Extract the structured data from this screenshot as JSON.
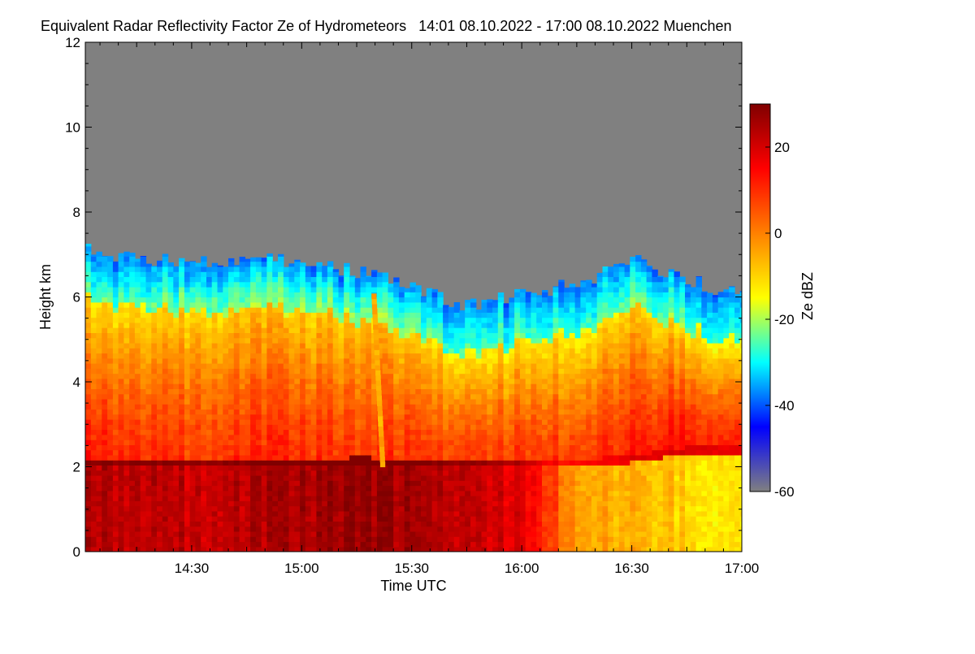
{
  "title": "Equivalent Radar Reflectivity Factor Ze of Hydrometeors   14:01 08.10.2022 - 17:00 08.10.2022 Muenchen",
  "chart_data": {
    "type": "heatmap",
    "title": "Equivalent Radar Reflectivity Factor Ze of Hydrometeors",
    "period": "14:01 08.10.2022 - 17:00 08.10.2022",
    "location": "Muenchen",
    "xlabel": "Time UTC",
    "ylabel": "Height km",
    "colorbar_label": "Ze dBZ",
    "x_range_minutes_utc": [
      841,
      1020
    ],
    "x_ticks": [
      {
        "minute": 870,
        "label": "14:30"
      },
      {
        "minute": 900,
        "label": "15:00"
      },
      {
        "minute": 930,
        "label": "15:30"
      },
      {
        "minute": 960,
        "label": "16:00"
      },
      {
        "minute": 990,
        "label": "16:30"
      },
      {
        "minute": 1020,
        "label": "17:00"
      }
    ],
    "ylim": [
      0,
      12
    ],
    "y_ticks": [
      0,
      2,
      4,
      6,
      8,
      10,
      12
    ],
    "colorbar_range": [
      -60,
      30
    ],
    "colorbar_ticks": [
      20,
      0,
      -20,
      -40,
      -60
    ],
    "colormap": [
      "#808080",
      "#0000ff",
      "#00ffff",
      "#ffff00",
      "#ff8000",
      "#ff0000",
      "#800000"
    ],
    "no_signal_color": "#808080",
    "profiles": [
      {
        "time": "14:01",
        "minute": 841,
        "cloud_top_km": 7.1,
        "bright_band_km": 2.0,
        "ze_below_band_dBZ": 24,
        "ze_mid_dBZ": 12,
        "ze_upper_dBZ": -12
      },
      {
        "time": "14:15",
        "minute": 855,
        "cloud_top_km": 6.9,
        "bright_band_km": 2.0,
        "ze_below_band_dBZ": 23,
        "ze_mid_dBZ": 10,
        "ze_upper_dBZ": -12
      },
      {
        "time": "14:30",
        "minute": 870,
        "cloud_top_km": 6.8,
        "bright_band_km": 2.0,
        "ze_below_band_dBZ": 22,
        "ze_mid_dBZ": 9,
        "ze_upper_dBZ": -10
      },
      {
        "time": "14:45",
        "minute": 885,
        "cloud_top_km": 6.9,
        "bright_band_km": 2.0,
        "ze_below_band_dBZ": 24,
        "ze_mid_dBZ": 11,
        "ze_upper_dBZ": -8
      },
      {
        "time": "15:00",
        "minute": 900,
        "cloud_top_km": 6.8,
        "bright_band_km": 2.0,
        "ze_below_band_dBZ": 25,
        "ze_mid_dBZ": 10,
        "ze_upper_dBZ": -10
      },
      {
        "time": "15:15",
        "minute": 915,
        "cloud_top_km": 6.6,
        "bright_band_km": 2.05,
        "ze_below_band_dBZ": 28,
        "ze_mid_dBZ": 9,
        "ze_upper_dBZ": -8
      },
      {
        "time": "15:30",
        "minute": 930,
        "cloud_top_km": 6.2,
        "bright_band_km": 2.0,
        "ze_below_band_dBZ": 25,
        "ze_mid_dBZ": 9,
        "ze_upper_dBZ": -10
      },
      {
        "time": "15:45",
        "minute": 945,
        "cloud_top_km": 5.8,
        "bright_band_km": 2.0,
        "ze_below_band_dBZ": 22,
        "ze_mid_dBZ": 8,
        "ze_upper_dBZ": -14
      },
      {
        "time": "16:00",
        "minute": 960,
        "cloud_top_km": 6.1,
        "bright_band_km": 2.0,
        "ze_below_band_dBZ": 18,
        "ze_mid_dBZ": 9,
        "ze_upper_dBZ": -12
      },
      {
        "time": "16:15",
        "minute": 975,
        "cloud_top_km": 6.3,
        "bright_band_km": 2.0,
        "ze_below_band_dBZ": -4,
        "ze_mid_dBZ": 8,
        "ze_upper_dBZ": -14
      },
      {
        "time": "16:30",
        "minute": 990,
        "cloud_top_km": 6.9,
        "bright_band_km": 2.1,
        "ze_below_band_dBZ": -6,
        "ze_mid_dBZ": 12,
        "ze_upper_dBZ": -10
      },
      {
        "time": "16:45",
        "minute": 1005,
        "cloud_top_km": 6.4,
        "bright_band_km": 2.3,
        "ze_below_band_dBZ": -10,
        "ze_mid_dBZ": 14,
        "ze_upper_dBZ": -12
      },
      {
        "time": "17:00",
        "minute": 1020,
        "cloud_top_km": 6.0,
        "bright_band_km": 2.3,
        "ze_below_band_dBZ": -14,
        "ze_mid_dBZ": 10,
        "ze_upper_dBZ": -18
      }
    ],
    "fall_streak": {
      "time": "15:22",
      "minute": 922,
      "from_km": 6.0,
      "to_km": 2.0,
      "ze_dBZ": -5
    },
    "grid": false
  }
}
